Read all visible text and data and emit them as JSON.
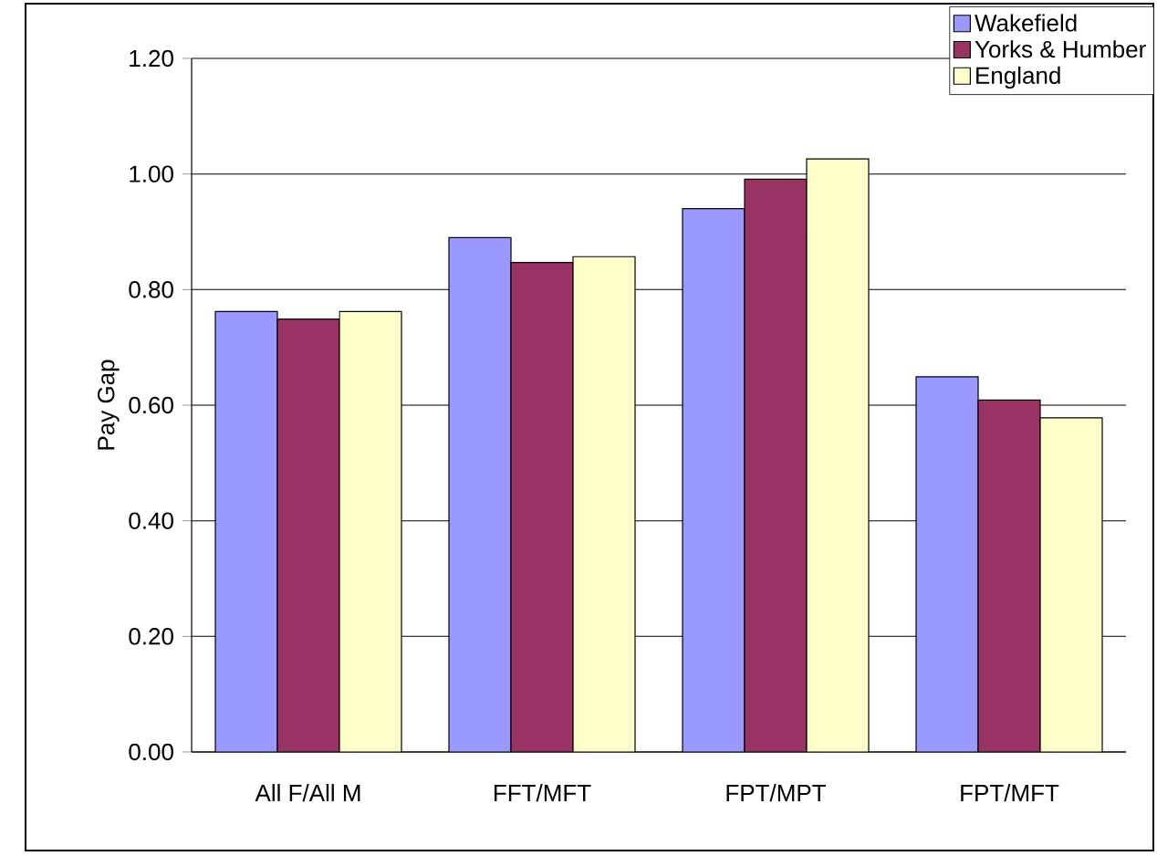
{
  "chart_data": {
    "type": "bar",
    "ylabel": "Pay Gap",
    "categories": [
      "All F/All M",
      "FFT/MFT",
      "FPT/MPT",
      "FPT/MFT"
    ],
    "series": [
      {
        "name": "Wakefield",
        "color": "#9999ff",
        "values": [
          0.762,
          0.89,
          0.94,
          0.649
        ]
      },
      {
        "name": "Yorks & Humber",
        "color": "#993366",
        "values": [
          0.749,
          0.847,
          0.991,
          0.609
        ]
      },
      {
        "name": "England",
        "color": "#ffffcc",
        "values": [
          0.762,
          0.857,
          1.026,
          0.578
        ]
      }
    ],
    "ylim": [
      0,
      1.2
    ],
    "yticks": [
      {
        "value": 0,
        "label": "0.00"
      },
      {
        "value": 0.2,
        "label": "0.20"
      },
      {
        "value": 0.4,
        "label": "0.40"
      },
      {
        "value": 0.6,
        "label": "0.60"
      },
      {
        "value": 0.8,
        "label": "0.80"
      },
      {
        "value": 1.0,
        "label": "1.00"
      },
      {
        "value": 1.2,
        "label": "1.20"
      }
    ],
    "grid": "y",
    "legend": "top right"
  }
}
